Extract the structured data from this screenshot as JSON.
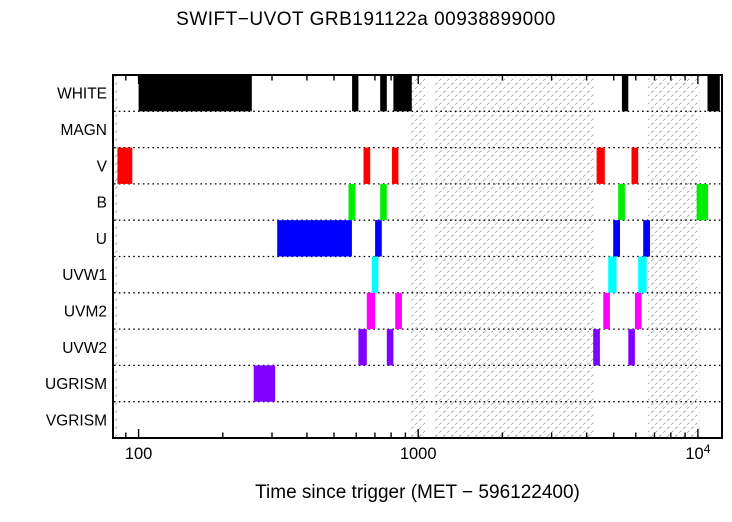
{
  "page": {
    "title": "SWIFT−UVOT GRB191122a 00938899000",
    "xlabel": "Time since trigger (MET − 596122400)"
  },
  "chart_data": {
    "type": "bar",
    "subtype": "interval-timeline-gantt-log-x",
    "title": "SWIFT−UVOT GRB191122a 00938899000",
    "xlabel": "Time since trigger (MET − 596122400)",
    "ylabel": "",
    "x_scale": "log10",
    "x_range": [
      81,
      12200
    ],
    "x_ticks_labeled": [
      {
        "value": 100,
        "label": "100"
      },
      {
        "value": 1000,
        "label": "1000"
      },
      {
        "value": 10000,
        "label": "10^4"
      }
    ],
    "x_minor_ticks": [
      90,
      200,
      300,
      400,
      500,
      600,
      700,
      800,
      900,
      2000,
      3000,
      4000,
      5000,
      6000,
      7000,
      8000,
      9000
    ],
    "grid": "dotted horizontal separators between filter rows",
    "legend_position": "none",
    "rows": [
      "WHITE",
      "MAGN",
      "V",
      "B",
      "U",
      "UVW1",
      "UVM2",
      "UVW2",
      "UGRISM",
      "VGRISM"
    ],
    "series": [
      {
        "name": "WHITE",
        "color": "#000000",
        "intervals": [
          [
            100,
            254
          ],
          [
            580,
            611
          ],
          [
            731,
            772
          ],
          [
            815,
            948
          ],
          [
            5350,
            5640
          ],
          [
            10830,
            11980
          ]
        ]
      },
      {
        "name": "MAGN",
        "color": "#000000",
        "intervals": []
      },
      {
        "name": "V",
        "color": "#ff0000",
        "intervals": [
          [
            84,
            95
          ],
          [
            637,
            673
          ],
          [
            805,
            849
          ],
          [
            4345,
            4650
          ],
          [
            5790,
            6120
          ]
        ]
      },
      {
        "name": "B",
        "color": "#00ee00",
        "intervals": [
          [
            563,
            595
          ],
          [
            731,
            772
          ],
          [
            5190,
            5485
          ],
          [
            9900,
            10880
          ]
        ]
      },
      {
        "name": "U",
        "color": "#0000ff",
        "intervals": [
          [
            313,
            579
          ],
          [
            701,
            741
          ],
          [
            4980,
            5265
          ],
          [
            6375,
            6740
          ]
        ]
      },
      {
        "name": "UVW1",
        "color": "#00ffff",
        "intervals": [
          [
            682,
            720
          ],
          [
            4780,
            5120
          ],
          [
            6120,
            6560
          ]
        ]
      },
      {
        "name": "UVM2",
        "color": "#ff00ff",
        "intervals": [
          [
            655,
            701
          ],
          [
            827,
            874
          ],
          [
            4590,
            4845
          ],
          [
            5955,
            6295
          ]
        ]
      },
      {
        "name": "UVW2",
        "color": "#7f00ff",
        "intervals": [
          [
            611,
            655
          ],
          [
            772,
            815
          ],
          [
            4225,
            4465
          ],
          [
            5640,
            5955
          ]
        ]
      },
      {
        "name": "UGRISM",
        "color": "#8000ff",
        "intervals": [
          [
            258,
            308
          ]
        ]
      },
      {
        "name": "VGRISM",
        "color": "#000000",
        "intervals": []
      }
    ],
    "hatched_unobservable_bands": [
      [
        81,
        85
      ],
      [
        935,
        1058
      ],
      [
        1135,
        4250
      ],
      [
        6630,
        10165
      ]
    ],
    "hatch_color": "#a8a8a8"
  }
}
